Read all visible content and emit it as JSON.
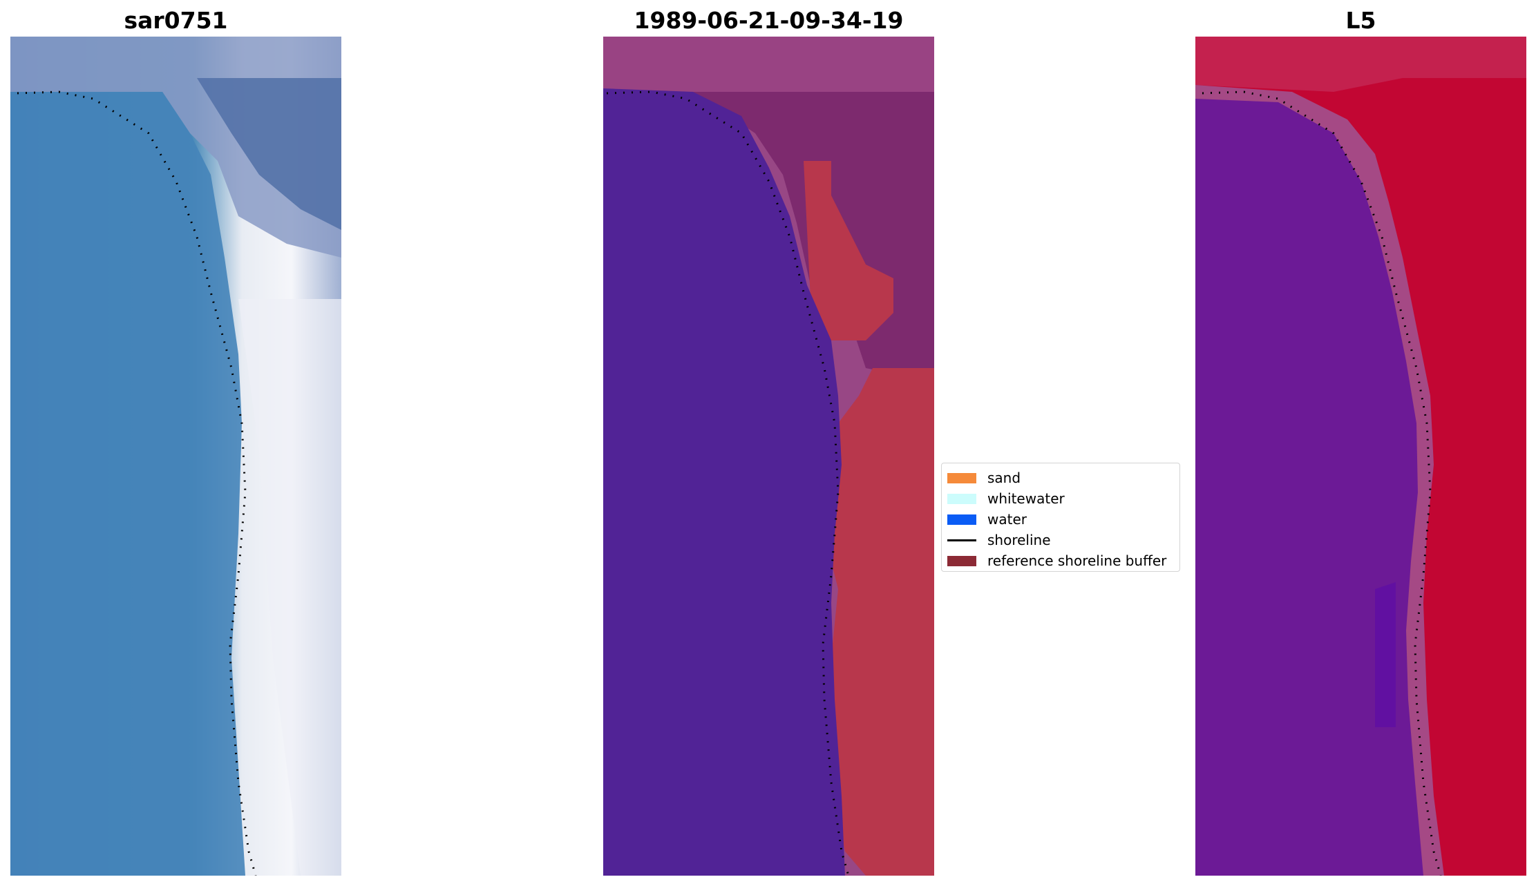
{
  "panels": [
    {
      "title": "sar0751"
    },
    {
      "title": "1989-06-21-09-34-19"
    },
    {
      "title": "L5"
    }
  ],
  "legend": {
    "items": [
      {
        "label": "sand",
        "color": "#f58a3a",
        "kind": "patch"
      },
      {
        "label": "whitewater",
        "color": "#ccfcfc",
        "kind": "patch"
      },
      {
        "label": "water",
        "color": "#0a5cf5",
        "kind": "patch"
      },
      {
        "label": "shoreline",
        "color": "#000000",
        "kind": "line"
      },
      {
        "label": "reference shoreline buffer",
        "color": "#8c2a35",
        "kind": "patch"
      }
    ]
  },
  "colors": {
    "classified_water": "#512396",
    "classified_buffer": "#b8374c",
    "classified_land": "#7d2a6e",
    "l5_water": "#6c1a96",
    "l5_land": "#c20633",
    "rgb_water": "#3f7ab5",
    "rgb_surf": "#f2f2f6",
    "rgb_land": "#5878ad"
  }
}
